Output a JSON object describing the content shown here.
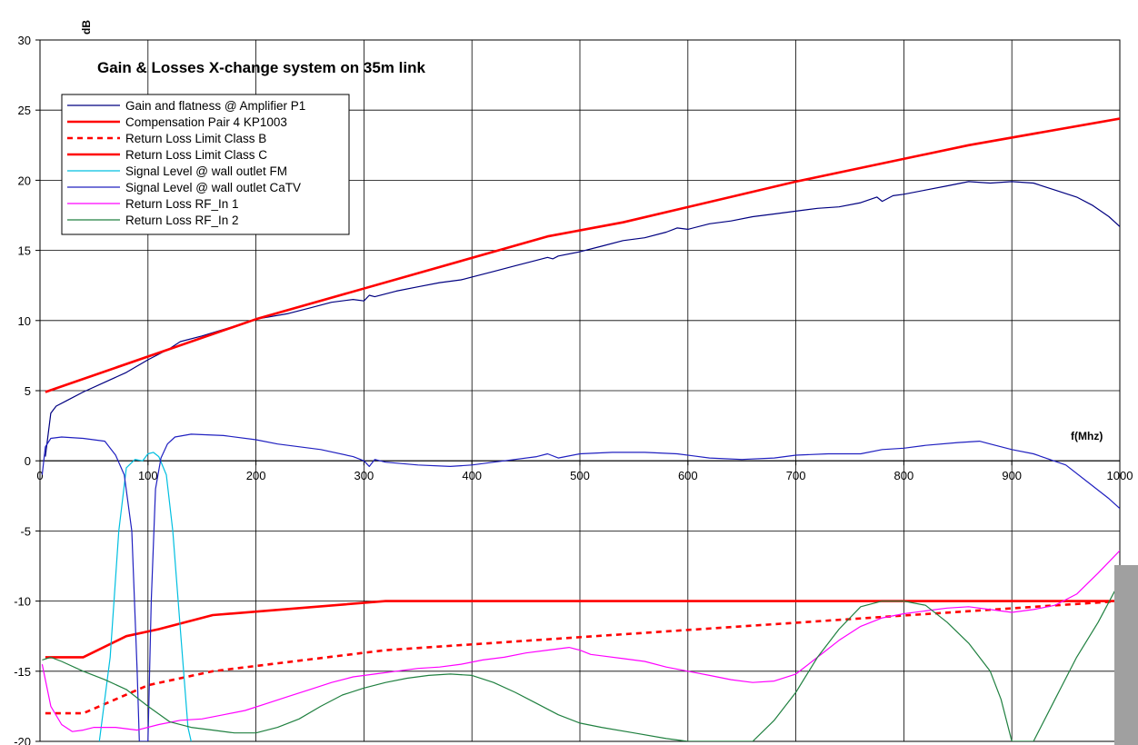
{
  "chart_data": {
    "type": "line",
    "title": "Gain & Losses  X-change system on 35m link",
    "xlabel": "f(Mhz)",
    "ylabel": "dB",
    "xlim": [
      0,
      1000
    ],
    "ylim": [
      -20,
      30
    ],
    "x_ticks": [
      "0",
      "100",
      "200",
      "300",
      "400",
      "500",
      "600",
      "700",
      "800",
      "900",
      "1000"
    ],
    "y_ticks": [
      "30",
      "25",
      "20",
      "15",
      "10",
      "5",
      "0",
      "-5",
      "-10",
      "-15",
      "-20"
    ],
    "grid": true,
    "legend_position": "top-left",
    "series": [
      {
        "name": "Gain and flatness @ Amplifier P1",
        "color": "#000080",
        "dash": "solid",
        "width": 1.2,
        "points": [
          [
            5,
            0.3
          ],
          [
            10,
            3.4
          ],
          [
            15,
            3.9
          ],
          [
            25,
            4.3
          ],
          [
            40,
            4.9
          ],
          [
            60,
            5.6
          ],
          [
            80,
            6.3
          ],
          [
            100,
            7.2
          ],
          [
            120,
            8.0
          ],
          [
            130,
            8.5
          ],
          [
            150,
            8.9
          ],
          [
            180,
            9.6
          ],
          [
            200,
            10.1
          ],
          [
            230,
            10.5
          ],
          [
            250,
            10.9
          ],
          [
            270,
            11.3
          ],
          [
            290,
            11.5
          ],
          [
            300,
            11.4
          ],
          [
            305,
            11.8
          ],
          [
            310,
            11.7
          ],
          [
            330,
            12.1
          ],
          [
            350,
            12.4
          ],
          [
            370,
            12.7
          ],
          [
            390,
            12.9
          ],
          [
            400,
            13.1
          ],
          [
            420,
            13.5
          ],
          [
            440,
            13.9
          ],
          [
            460,
            14.3
          ],
          [
            470,
            14.5
          ],
          [
            475,
            14.4
          ],
          [
            480,
            14.6
          ],
          [
            500,
            14.9
          ],
          [
            520,
            15.3
          ],
          [
            540,
            15.7
          ],
          [
            560,
            15.9
          ],
          [
            580,
            16.3
          ],
          [
            590,
            16.6
          ],
          [
            600,
            16.5
          ],
          [
            620,
            16.9
          ],
          [
            640,
            17.1
          ],
          [
            660,
            17.4
          ],
          [
            680,
            17.6
          ],
          [
            700,
            17.8
          ],
          [
            720,
            18.0
          ],
          [
            740,
            18.1
          ],
          [
            760,
            18.4
          ],
          [
            775,
            18.8
          ],
          [
            780,
            18.5
          ],
          [
            790,
            18.9
          ],
          [
            800,
            19.0
          ],
          [
            820,
            19.3
          ],
          [
            840,
            19.6
          ],
          [
            860,
            19.9
          ],
          [
            880,
            19.8
          ],
          [
            900,
            19.9
          ],
          [
            920,
            19.8
          ],
          [
            940,
            19.3
          ],
          [
            960,
            18.8
          ],
          [
            975,
            18.2
          ],
          [
            990,
            17.4
          ],
          [
            1000,
            16.7
          ]
        ]
      },
      {
        "name": "Compensation Pair 4 KP1003",
        "color": "#ff0000",
        "dash": "solid",
        "width": 2.6,
        "points": [
          [
            5,
            4.9
          ],
          [
            200,
            10.1
          ],
          [
            470,
            16.0
          ],
          [
            540,
            17.0
          ],
          [
            700,
            19.9
          ],
          [
            860,
            22.5
          ],
          [
            1000,
            24.4
          ]
        ]
      },
      {
        "name": "Return Loss Limit Class B",
        "color": "#ff0000",
        "dash": "dashed",
        "width": 2.6,
        "points": [
          [
            5,
            -18
          ],
          [
            40,
            -18
          ],
          [
            70,
            -17
          ],
          [
            100,
            -16
          ],
          [
            160,
            -15
          ],
          [
            320,
            -13.5
          ],
          [
            1000,
            -10
          ]
        ]
      },
      {
        "name": "Return Loss Limit Class C",
        "color": "#ff0000",
        "dash": "solid",
        "width": 2.6,
        "points": [
          [
            5,
            -14
          ],
          [
            40,
            -14
          ],
          [
            80,
            -12.5
          ],
          [
            110,
            -12
          ],
          [
            160,
            -11
          ],
          [
            320,
            -10
          ],
          [
            1000,
            -10
          ]
        ]
      },
      {
        "name": "Signal Level @ wall outlet FM",
        "color": "#00bfe0",
        "dash": "solid",
        "width": 1.2,
        "points": [
          [
            55,
            -20
          ],
          [
            65,
            -14
          ],
          [
            73,
            -5
          ],
          [
            80,
            -0.5
          ],
          [
            88,
            0.1
          ],
          [
            95,
            0
          ],
          [
            100,
            0.5
          ],
          [
            105,
            0.6
          ],
          [
            110,
            0.3
          ],
          [
            117,
            -1
          ],
          [
            123,
            -5
          ],
          [
            130,
            -12
          ],
          [
            137,
            -19
          ],
          [
            140,
            -20
          ]
        ]
      },
      {
        "name": "Signal Level @ wall outlet CaTV",
        "color": "#2020c0",
        "dash": "solid",
        "width": 1.2,
        "points": [
          [
            2,
            -1
          ],
          [
            5,
            1
          ],
          [
            10,
            1.6
          ],
          [
            20,
            1.7
          ],
          [
            40,
            1.6
          ],
          [
            60,
            1.4
          ],
          [
            70,
            0.4
          ],
          [
            78,
            -1
          ],
          [
            85,
            -5
          ],
          [
            90,
            -15
          ],
          [
            92,
            -20
          ],
          [
            100,
            -20
          ],
          [
            103,
            -10
          ],
          [
            107,
            -2
          ],
          [
            112,
            0.2
          ],
          [
            118,
            1.2
          ],
          [
            125,
            1.7
          ],
          [
            140,
            1.9
          ],
          [
            170,
            1.8
          ],
          [
            200,
            1.5
          ],
          [
            220,
            1.2
          ],
          [
            260,
            0.8
          ],
          [
            290,
            0.3
          ],
          [
            300,
            0
          ],
          [
            305,
            -0.4
          ],
          [
            310,
            0.1
          ],
          [
            320,
            -0.1
          ],
          [
            350,
            -0.3
          ],
          [
            380,
            -0.4
          ],
          [
            400,
            -0.3
          ],
          [
            420,
            -0.1
          ],
          [
            440,
            0.1
          ],
          [
            460,
            0.3
          ],
          [
            470,
            0.5
          ],
          [
            480,
            0.2
          ],
          [
            500,
            0.5
          ],
          [
            530,
            0.6
          ],
          [
            560,
            0.6
          ],
          [
            590,
            0.5
          ],
          [
            620,
            0.2
          ],
          [
            650,
            0.1
          ],
          [
            680,
            0.2
          ],
          [
            700,
            0.4
          ],
          [
            730,
            0.5
          ],
          [
            760,
            0.5
          ],
          [
            780,
            0.8
          ],
          [
            800,
            0.9
          ],
          [
            820,
            1.1
          ],
          [
            850,
            1.3
          ],
          [
            870,
            1.4
          ],
          [
            880,
            1.2
          ],
          [
            900,
            0.8
          ],
          [
            920,
            0.5
          ],
          [
            950,
            -0.3
          ],
          [
            970,
            -1.5
          ],
          [
            990,
            -2.7
          ],
          [
            1000,
            -3.4
          ]
        ]
      },
      {
        "name": "Return Loss RF_In 1",
        "color": "#ff00ff",
        "dash": "solid",
        "width": 1.2,
        "points": [
          [
            2,
            -14.5
          ],
          [
            10,
            -17.5
          ],
          [
            20,
            -18.8
          ],
          [
            30,
            -19.3
          ],
          [
            40,
            -19.2
          ],
          [
            50,
            -19.0
          ],
          [
            70,
            -19.0
          ],
          [
            90,
            -19.2
          ],
          [
            110,
            -18.8
          ],
          [
            130,
            -18.5
          ],
          [
            150,
            -18.4
          ],
          [
            170,
            -18.1
          ],
          [
            190,
            -17.8
          ],
          [
            210,
            -17.3
          ],
          [
            230,
            -16.8
          ],
          [
            250,
            -16.3
          ],
          [
            270,
            -15.8
          ],
          [
            290,
            -15.4
          ],
          [
            310,
            -15.2
          ],
          [
            330,
            -15.0
          ],
          [
            350,
            -14.8
          ],
          [
            370,
            -14.7
          ],
          [
            390,
            -14.5
          ],
          [
            410,
            -14.2
          ],
          [
            430,
            -14.0
          ],
          [
            450,
            -13.7
          ],
          [
            470,
            -13.5
          ],
          [
            490,
            -13.3
          ],
          [
            500,
            -13.5
          ],
          [
            510,
            -13.8
          ],
          [
            520,
            -13.9
          ],
          [
            540,
            -14.1
          ],
          [
            560,
            -14.3
          ],
          [
            580,
            -14.7
          ],
          [
            600,
            -15.0
          ],
          [
            620,
            -15.3
          ],
          [
            640,
            -15.6
          ],
          [
            660,
            -15.8
          ],
          [
            680,
            -15.7
          ],
          [
            700,
            -15.2
          ],
          [
            720,
            -14.0
          ],
          [
            740,
            -12.8
          ],
          [
            760,
            -11.8
          ],
          [
            780,
            -11.2
          ],
          [
            800,
            -10.9
          ],
          [
            820,
            -10.7
          ],
          [
            840,
            -10.5
          ],
          [
            860,
            -10.4
          ],
          [
            880,
            -10.6
          ],
          [
            900,
            -10.8
          ],
          [
            920,
            -10.6
          ],
          [
            940,
            -10.3
          ],
          [
            960,
            -9.5
          ],
          [
            980,
            -8.0
          ],
          [
            1000,
            -6.4
          ]
        ]
      },
      {
        "name": "Return Loss RF_In 2",
        "color": "#208040",
        "dash": "solid",
        "width": 1.2,
        "points": [
          [
            2,
            -14.2
          ],
          [
            10,
            -14.0
          ],
          [
            20,
            -14.3
          ],
          [
            40,
            -15.0
          ],
          [
            60,
            -15.6
          ],
          [
            80,
            -16.3
          ],
          [
            100,
            -17.5
          ],
          [
            120,
            -18.6
          ],
          [
            140,
            -19.0
          ],
          [
            160,
            -19.2
          ],
          [
            180,
            -19.4
          ],
          [
            200,
            -19.4
          ],
          [
            220,
            -19.0
          ],
          [
            240,
            -18.4
          ],
          [
            260,
            -17.5
          ],
          [
            280,
            -16.7
          ],
          [
            300,
            -16.2
          ],
          [
            320,
            -15.8
          ],
          [
            340,
            -15.5
          ],
          [
            360,
            -15.3
          ],
          [
            380,
            -15.2
          ],
          [
            400,
            -15.3
          ],
          [
            420,
            -15.8
          ],
          [
            440,
            -16.5
          ],
          [
            460,
            -17.3
          ],
          [
            480,
            -18.1
          ],
          [
            500,
            -18.7
          ],
          [
            520,
            -19.0
          ],
          [
            550,
            -19.4
          ],
          [
            580,
            -19.8
          ],
          [
            600,
            -20
          ],
          [
            640,
            -20
          ],
          [
            660,
            -20
          ],
          [
            680,
            -18.5
          ],
          [
            700,
            -16.5
          ],
          [
            720,
            -14.0
          ],
          [
            740,
            -12.0
          ],
          [
            760,
            -10.4
          ],
          [
            780,
            -10.0
          ],
          [
            800,
            -10.0
          ],
          [
            820,
            -10.3
          ],
          [
            840,
            -11.5
          ],
          [
            860,
            -13.0
          ],
          [
            880,
            -15.0
          ],
          [
            890,
            -17.0
          ],
          [
            900,
            -20
          ],
          [
            920,
            -20
          ],
          [
            940,
            -17.0
          ],
          [
            960,
            -14.0
          ],
          [
            980,
            -11.5
          ],
          [
            1000,
            -8.6
          ]
        ]
      }
    ]
  }
}
